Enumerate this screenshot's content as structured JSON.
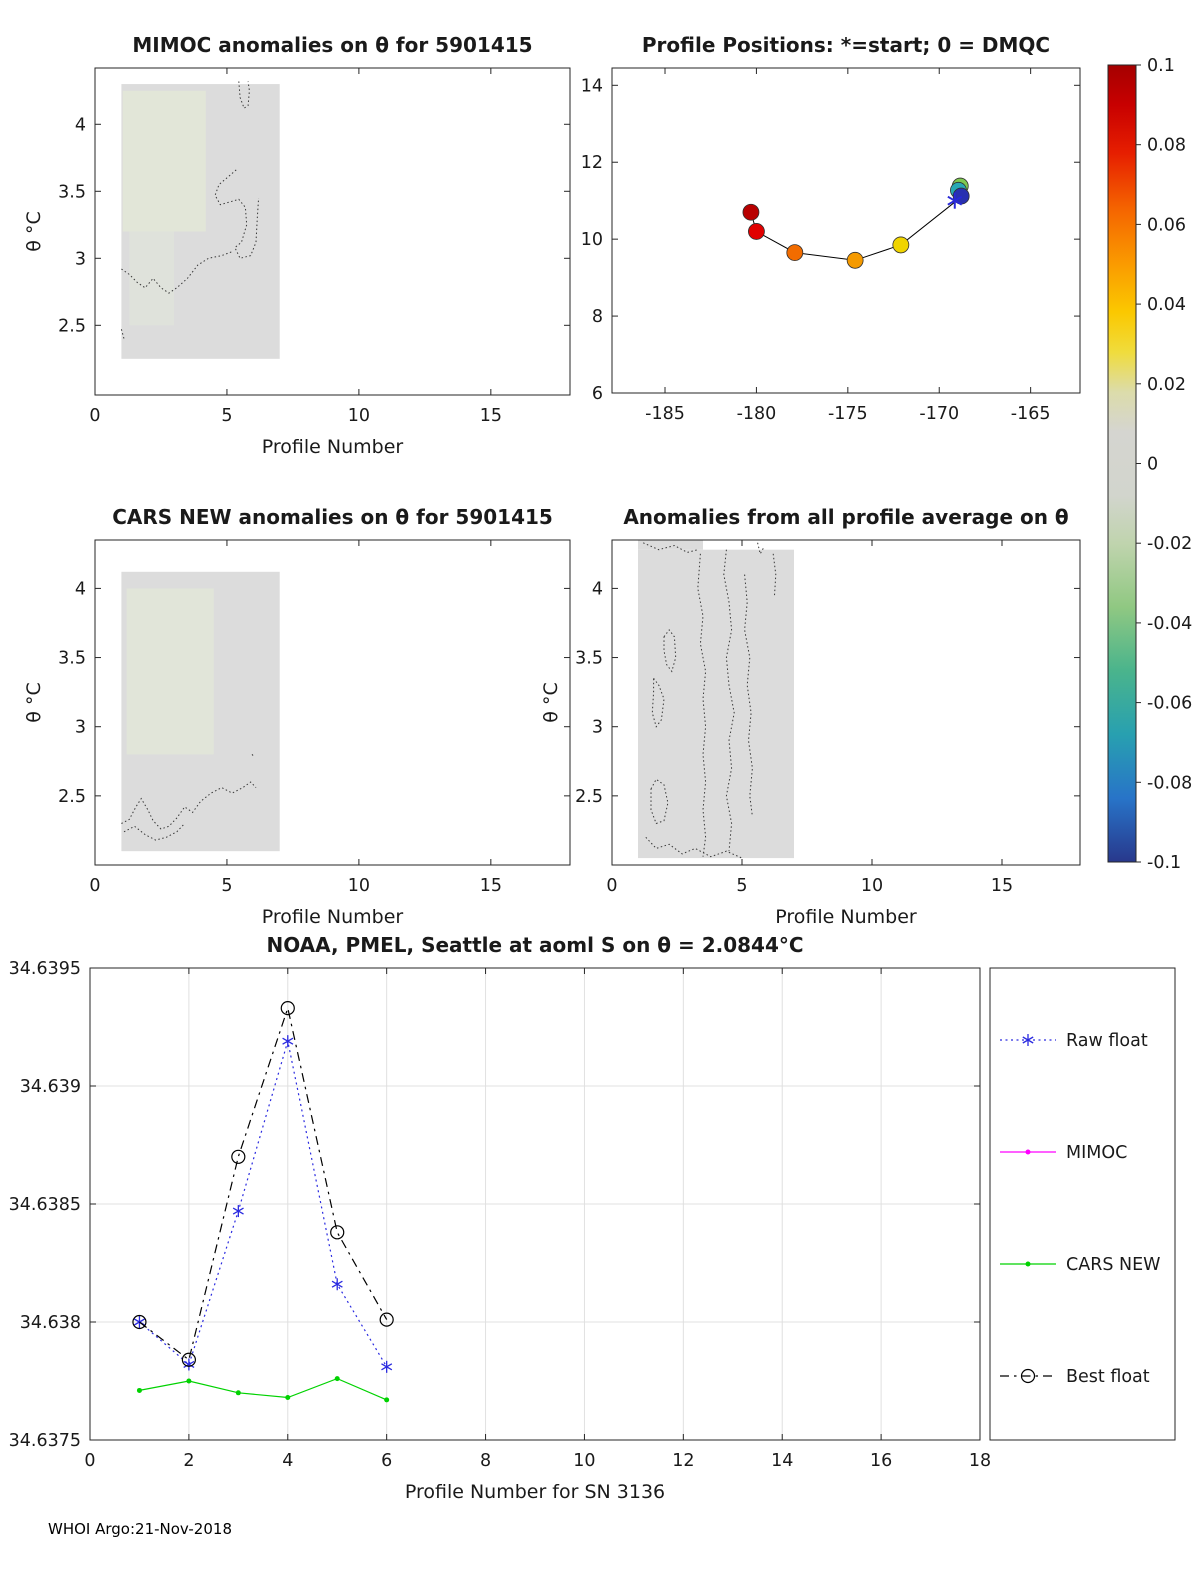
{
  "figure": {
    "footer": "WHOI Argo:21-Nov-2018"
  },
  "colorbar": {
    "vmin": -0.1,
    "vmax": 0.1,
    "ticks": [
      0.1,
      0.08,
      0.06,
      0.04,
      0.02,
      0,
      -0.02,
      -0.04,
      -0.06,
      -0.08,
      -0.1
    ],
    "stops": [
      [
        0.0,
        "#a50000"
      ],
      [
        0.05,
        "#c80000"
      ],
      [
        0.11,
        "#e61e00"
      ],
      [
        0.18,
        "#f56400"
      ],
      [
        0.25,
        "#fa9b00"
      ],
      [
        0.31,
        "#fbc800"
      ],
      [
        0.36,
        "#f0dc3c"
      ],
      [
        0.41,
        "#dcdcaa"
      ],
      [
        0.46,
        "#d5d5d0"
      ],
      [
        0.54,
        "#d2d5cd"
      ],
      [
        0.6,
        "#c0d4ae"
      ],
      [
        0.68,
        "#90c882"
      ],
      [
        0.76,
        "#4ab48c"
      ],
      [
        0.84,
        "#28a0b0"
      ],
      [
        0.92,
        "#2874c8"
      ],
      [
        1.0,
        "#28388c"
      ]
    ]
  },
  "legend": {
    "items": [
      {
        "label": "Raw float",
        "color": "#2a2ae0",
        "line": "dotted",
        "marker": "asterisk"
      },
      {
        "label": "MIMOC",
        "color": "#ff00ff",
        "line": "solid",
        "marker": "dot"
      },
      {
        "label": "CARS NEW",
        "color": "#00d200",
        "line": "solid",
        "marker": "dot"
      },
      {
        "label": "Best float",
        "color": "#000000",
        "line": "dashdot",
        "marker": "circle"
      }
    ]
  },
  "chart_data": [
    {
      "id": "mimoc",
      "type": "contour",
      "title": "MIMOC anomalies on θ  for 5901415",
      "xlabel": "Profile Number",
      "ylabel": "θ °C",
      "xlim": [
        0,
        18
      ],
      "ylim": [
        1.98,
        4.42
      ],
      "xticks": [
        0,
        5,
        10,
        15
      ],
      "yticks": [
        2.5,
        3,
        3.5,
        4
      ],
      "shaded": [
        {
          "x0": 1,
          "x1": 7,
          "y0": 2.25,
          "y1": 4.3,
          "color": "#dcdcdc"
        },
        {
          "x0": 1.05,
          "x1": 4.2,
          "y0": 3.2,
          "y1": 4.25,
          "color": "#e2e6d8"
        },
        {
          "x0": 1.3,
          "x1": 3.0,
          "y0": 2.5,
          "y1": 3.2,
          "color": "#dfe2db"
        }
      ],
      "contours": [
        [
          [
            5.45,
            4.32
          ],
          [
            5.5,
            4.2
          ],
          [
            5.65,
            4.12
          ],
          [
            5.8,
            4.14
          ],
          [
            5.85,
            4.25
          ],
          [
            5.8,
            4.32
          ]
        ],
        [
          [
            5.35,
            3.66
          ],
          [
            5.0,
            3.6
          ],
          [
            4.7,
            3.55
          ],
          [
            4.55,
            3.47
          ],
          [
            4.75,
            3.4
          ],
          [
            5.1,
            3.42
          ],
          [
            5.45,
            3.44
          ],
          [
            5.7,
            3.38
          ],
          [
            5.75,
            3.25
          ],
          [
            5.55,
            3.12
          ],
          [
            5.3,
            3.08
          ],
          [
            5.5,
            3.0
          ],
          [
            5.9,
            3.02
          ],
          [
            6.1,
            3.12
          ],
          [
            6.15,
            3.3
          ],
          [
            6.2,
            3.45
          ]
        ],
        [
          [
            1.0,
            2.92
          ],
          [
            1.3,
            2.88
          ],
          [
            1.6,
            2.82
          ],
          [
            1.9,
            2.78
          ],
          [
            2.2,
            2.85
          ],
          [
            2.5,
            2.78
          ],
          [
            2.8,
            2.74
          ],
          [
            3.1,
            2.78
          ],
          [
            3.5,
            2.85
          ],
          [
            3.9,
            2.95
          ],
          [
            4.3,
            3.0
          ],
          [
            4.8,
            3.02
          ],
          [
            5.2,
            3.05
          ]
        ],
        [
          [
            1.0,
            2.47
          ],
          [
            1.1,
            2.4
          ]
        ]
      ]
    },
    {
      "id": "positions",
      "type": "scatter",
      "title": "Profile Positions: *=start; 0 = DMQC",
      "xlim": [
        -187.9,
        -162.3
      ],
      "ylim": [
        6,
        14.45
      ],
      "xticks": [
        -185,
        -180,
        -175,
        -170,
        -165
      ],
      "yticks": [
        6,
        8,
        10,
        12,
        14
      ],
      "track": [
        [
          -180.3,
          10.7
        ],
        [
          -180.0,
          10.2
        ],
        [
          -177.9,
          9.65
        ],
        [
          -174.6,
          9.45
        ],
        [
          -172.1,
          9.85
        ],
        [
          -169.05,
          11.0
        ],
        [
          -168.95,
          11.27
        ],
        [
          -168.85,
          11.38
        ]
      ],
      "points": [
        {
          "x": -180.3,
          "y": 10.7,
          "color": "#b80000"
        },
        {
          "x": -180.0,
          "y": 10.2,
          "color": "#e00000"
        },
        {
          "x": -177.9,
          "y": 9.65,
          "color": "#f26c00"
        },
        {
          "x": -174.6,
          "y": 9.45,
          "color": "#f59a00"
        },
        {
          "x": -172.1,
          "y": 9.85,
          "color": "#f0d400"
        },
        {
          "x": -168.85,
          "y": 11.38,
          "color": "#7ec850"
        },
        {
          "x": -168.95,
          "y": 11.27,
          "color": "#28a8b4"
        },
        {
          "x": -168.8,
          "y": 11.12,
          "color": "#2830b0"
        }
      ],
      "start_marker": {
        "x": -169.15,
        "y": 11.0,
        "color": "#2828d8"
      }
    },
    {
      "id": "cars",
      "type": "contour",
      "title": "CARS NEW anomalies on θ for 5901415",
      "xlabel": "Profile Number",
      "ylabel": "θ °C",
      "xlim": [
        0,
        18
      ],
      "ylim": [
        2.0,
        4.35
      ],
      "xticks": [
        0,
        5,
        10,
        15
      ],
      "yticks": [
        2.5,
        3,
        3.5,
        4
      ],
      "shaded": [
        {
          "x0": 1,
          "x1": 7,
          "y0": 2.1,
          "y1": 4.12,
          "color": "#dcdcdc"
        },
        {
          "x0": 1.2,
          "x1": 4.5,
          "y0": 2.8,
          "y1": 4.0,
          "color": "#e1e5d9"
        }
      ],
      "contours": [
        [
          [
            1.0,
            2.3
          ],
          [
            1.3,
            2.33
          ],
          [
            1.55,
            2.42
          ],
          [
            1.75,
            2.48
          ],
          [
            2.0,
            2.4
          ],
          [
            2.2,
            2.32
          ],
          [
            2.5,
            2.26
          ],
          [
            2.8,
            2.28
          ],
          [
            3.1,
            2.34
          ],
          [
            3.4,
            2.42
          ],
          [
            3.7,
            2.38
          ],
          [
            4.0,
            2.46
          ],
          [
            4.4,
            2.52
          ],
          [
            4.8,
            2.56
          ],
          [
            5.2,
            2.52
          ],
          [
            5.6,
            2.56
          ],
          [
            5.9,
            2.6
          ],
          [
            6.1,
            2.56
          ]
        ],
        [
          [
            1.1,
            2.24
          ],
          [
            1.5,
            2.28
          ],
          [
            1.9,
            2.22
          ],
          [
            2.3,
            2.18
          ],
          [
            2.7,
            2.2
          ],
          [
            3.1,
            2.24
          ],
          [
            3.4,
            2.3
          ]
        ],
        [
          [
            5.95,
            2.8
          ],
          [
            6.05,
            2.78
          ]
        ]
      ]
    },
    {
      "id": "allprof",
      "type": "contour",
      "title": "Anomalies from all profile average on θ",
      "xlabel": "Profile Number",
      "ylabel": "θ °C",
      "xlim": [
        0,
        18
      ],
      "ylim": [
        2.0,
        4.35
      ],
      "xticks": [
        0,
        5,
        10,
        15
      ],
      "yticks": [
        2.5,
        3,
        3.5,
        4
      ],
      "shaded": [
        {
          "x0": 1,
          "x1": 7,
          "y0": 2.05,
          "y1": 4.28,
          "color": "#dcdcdc"
        },
        {
          "x0": 1,
          "x1": 3.5,
          "y0": 4.28,
          "y1": 4.35,
          "color": "#dcdcdc"
        }
      ],
      "contours": [
        [
          [
            1.2,
            4.33
          ],
          [
            1.8,
            4.28
          ],
          [
            2.4,
            4.31
          ],
          [
            2.9,
            4.26
          ],
          [
            3.3,
            4.28
          ]
        ],
        [
          [
            3.4,
            4.25
          ],
          [
            3.3,
            4.0
          ],
          [
            3.5,
            3.8
          ],
          [
            3.4,
            3.6
          ],
          [
            3.6,
            3.4
          ],
          [
            3.5,
            3.2
          ],
          [
            3.6,
            3.0
          ],
          [
            3.5,
            2.8
          ],
          [
            3.6,
            2.6
          ],
          [
            3.5,
            2.4
          ],
          [
            3.6,
            2.2
          ],
          [
            3.5,
            2.06
          ]
        ],
        [
          [
            4.4,
            4.28
          ],
          [
            4.3,
            4.1
          ],
          [
            4.5,
            3.9
          ],
          [
            4.6,
            3.7
          ],
          [
            4.4,
            3.5
          ],
          [
            4.5,
            3.3
          ],
          [
            4.7,
            3.1
          ],
          [
            4.5,
            2.9
          ],
          [
            4.6,
            2.7
          ],
          [
            4.4,
            2.5
          ],
          [
            4.6,
            2.3
          ],
          [
            4.5,
            2.1
          ]
        ],
        [
          [
            2.0,
            3.65
          ],
          [
            2.2,
            3.7
          ],
          [
            2.4,
            3.65
          ],
          [
            2.45,
            3.5
          ],
          [
            2.3,
            3.4
          ],
          [
            2.1,
            3.45
          ],
          [
            2.0,
            3.55
          ],
          [
            2.0,
            3.65
          ]
        ],
        [
          [
            1.6,
            3.35
          ],
          [
            1.8,
            3.3
          ],
          [
            2.0,
            3.2
          ],
          [
            1.9,
            3.05
          ],
          [
            1.7,
            3.0
          ],
          [
            1.55,
            3.1
          ],
          [
            1.6,
            3.25
          ],
          [
            1.6,
            3.35
          ]
        ],
        [
          [
            1.5,
            2.55
          ],
          [
            1.7,
            2.62
          ],
          [
            2.0,
            2.58
          ],
          [
            2.15,
            2.45
          ],
          [
            2.0,
            2.32
          ],
          [
            1.7,
            2.3
          ],
          [
            1.5,
            2.4
          ],
          [
            1.5,
            2.55
          ]
        ],
        [
          [
            1.3,
            2.2
          ],
          [
            1.7,
            2.12
          ],
          [
            2.2,
            2.15
          ],
          [
            2.7,
            2.08
          ],
          [
            3.2,
            2.12
          ],
          [
            3.8,
            2.06
          ],
          [
            4.4,
            2.1
          ],
          [
            5.0,
            2.05
          ]
        ],
        [
          [
            5.1,
            4.1
          ],
          [
            5.2,
            3.9
          ],
          [
            5.1,
            3.7
          ],
          [
            5.3,
            3.5
          ],
          [
            5.2,
            3.3
          ],
          [
            5.35,
            3.1
          ],
          [
            5.25,
            2.9
          ],
          [
            5.4,
            2.7
          ],
          [
            5.3,
            2.5
          ],
          [
            5.4,
            2.35
          ]
        ],
        [
          [
            5.6,
            4.33
          ],
          [
            5.7,
            4.25
          ],
          [
            5.85,
            4.3
          ]
        ],
        [
          [
            6.2,
            4.25
          ],
          [
            6.3,
            4.1
          ],
          [
            6.25,
            3.95
          ]
        ]
      ]
    },
    {
      "id": "salinity",
      "type": "line",
      "title": "NOAA, PMEL, Seattle at aoml S on θ = 2.0844°C",
      "xlabel": "Profile Number for SN 3136",
      "ylabel": "",
      "grid": true,
      "xlim": [
        0,
        18
      ],
      "ylim": [
        34.6375,
        34.6395
      ],
      "xticks": [
        0,
        2,
        4,
        6,
        8,
        10,
        12,
        14,
        16,
        18
      ],
      "yticks": [
        34.6375,
        34.638,
        34.6385,
        34.639,
        34.6395
      ],
      "series": [
        {
          "name": "Raw float",
          "color": "#2a2ae0",
          "line": "dotted",
          "marker": "asterisk",
          "x": [
            1,
            2,
            3,
            4,
            5,
            6
          ],
          "y": [
            34.638,
            34.63782,
            34.63847,
            34.63919,
            34.63816,
            34.63781
          ]
        },
        {
          "name": "MIMOC",
          "color": "#ff00ff",
          "line": "solid",
          "marker": "dot",
          "x": [],
          "y": []
        },
        {
          "name": "CARS NEW",
          "color": "#00d200",
          "line": "solid",
          "marker": "dot",
          "x": [
            1,
            2,
            3,
            4,
            5,
            6
          ],
          "y": [
            34.63771,
            34.63775,
            34.6377,
            34.63768,
            34.63776,
            34.63767
          ]
        },
        {
          "name": "Best float",
          "color": "#000000",
          "line": "dashdot",
          "marker": "circle",
          "x": [
            1,
            2,
            3,
            4,
            5,
            6
          ],
          "y": [
            34.638,
            34.63784,
            34.6387,
            34.63933,
            34.63838,
            34.63801
          ]
        }
      ]
    }
  ]
}
